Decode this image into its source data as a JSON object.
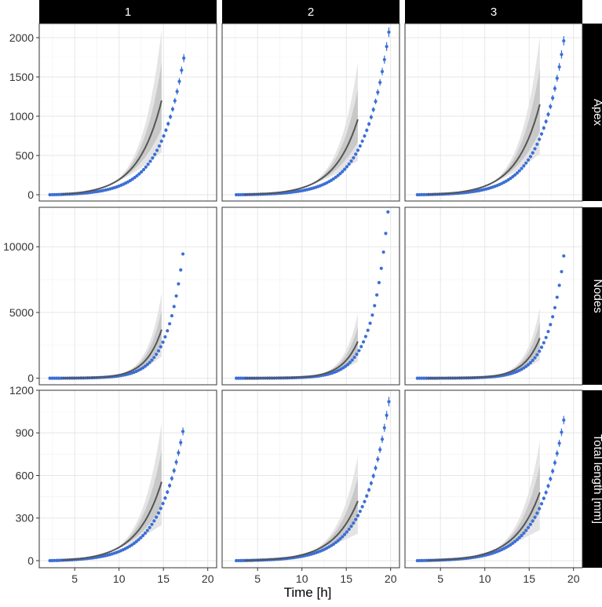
{
  "colors": {
    "points": "#3b6fd6",
    "fit_line": "#555555",
    "band_outer": "#e4e4e4",
    "band_inner": "#c8c8c8",
    "grid": "#e6e6e6",
    "strip_bg": "#000000",
    "strip_text": "#ffffff"
  },
  "chart_data": {
    "type": "scatter",
    "layout": "facet_grid",
    "xlabel": "Time [h]",
    "ylabel": "",
    "column_facets": [
      "1",
      "2",
      "3"
    ],
    "row_facets": [
      "Apex",
      "Nodes",
      "Total length [mm]"
    ],
    "xlim": [
      1,
      21
    ],
    "x_ticks": [
      5,
      10,
      15,
      20
    ],
    "grid": true,
    "rows": [
      {
        "label": "Apex",
        "ylim": [
          -80,
          2180
        ],
        "y_ticks": [
          0,
          500,
          1000,
          1500,
          2000
        ],
        "panels": [
          {
            "label": "1",
            "growth": 0.37,
            "x_start": 2.2,
            "x_end": 17.3,
            "y_end": 1740,
            "fit_end_x": 14.8,
            "fit_end_y": 1200,
            "error_bars": true
          },
          {
            "label": "2",
            "growth": 0.37,
            "x_start": 2.6,
            "x_end": 19.8,
            "y_end": 2070,
            "fit_end_x": 16.3,
            "fit_end_y": 960,
            "error_bars": true
          },
          {
            "label": "3",
            "growth": 0.37,
            "x_start": 2.4,
            "x_end": 18.9,
            "y_end": 1960,
            "fit_end_x": 16.2,
            "fit_end_y": 1150,
            "error_bars": true
          }
        ]
      },
      {
        "label": "Nodes",
        "ylim": [
          -500,
          13000
        ],
        "y_ticks": [
          0,
          5000,
          10000
        ],
        "panels": [
          {
            "label": "1",
            "growth": 0.55,
            "x_start": 2.2,
            "x_end": 17.2,
            "y_end": 9450,
            "fit_end_x": 14.8,
            "fit_end_y": 3700,
            "error_bars": false
          },
          {
            "label": "2",
            "growth": 0.55,
            "x_start": 2.6,
            "x_end": 19.7,
            "y_end": 12650,
            "fit_end_x": 16.3,
            "fit_end_y": 2800,
            "error_bars": false
          },
          {
            "label": "3",
            "growth": 0.55,
            "x_start": 2.4,
            "x_end": 18.9,
            "y_end": 9300,
            "fit_end_x": 16.2,
            "fit_end_y": 3050,
            "error_bars": false
          }
        ]
      },
      {
        "label": "Total length [mm]",
        "ylim": [
          -50,
          1200
        ],
        "y_ticks": [
          0,
          300,
          600,
          900,
          1200
        ],
        "panels": [
          {
            "label": "1",
            "growth": 0.36,
            "x_start": 2.2,
            "x_end": 17.2,
            "y_end": 910,
            "fit_end_x": 14.8,
            "fit_end_y": 555,
            "error_bars": true
          },
          {
            "label": "2",
            "growth": 0.36,
            "x_start": 2.6,
            "x_end": 19.8,
            "y_end": 1120,
            "fit_end_x": 16.3,
            "fit_end_y": 420,
            "error_bars": true
          },
          {
            "label": "3",
            "growth": 0.36,
            "x_start": 2.4,
            "x_end": 18.9,
            "y_end": 990,
            "fit_end_x": 16.2,
            "fit_end_y": 480,
            "error_bars": true
          }
        ]
      }
    ]
  }
}
